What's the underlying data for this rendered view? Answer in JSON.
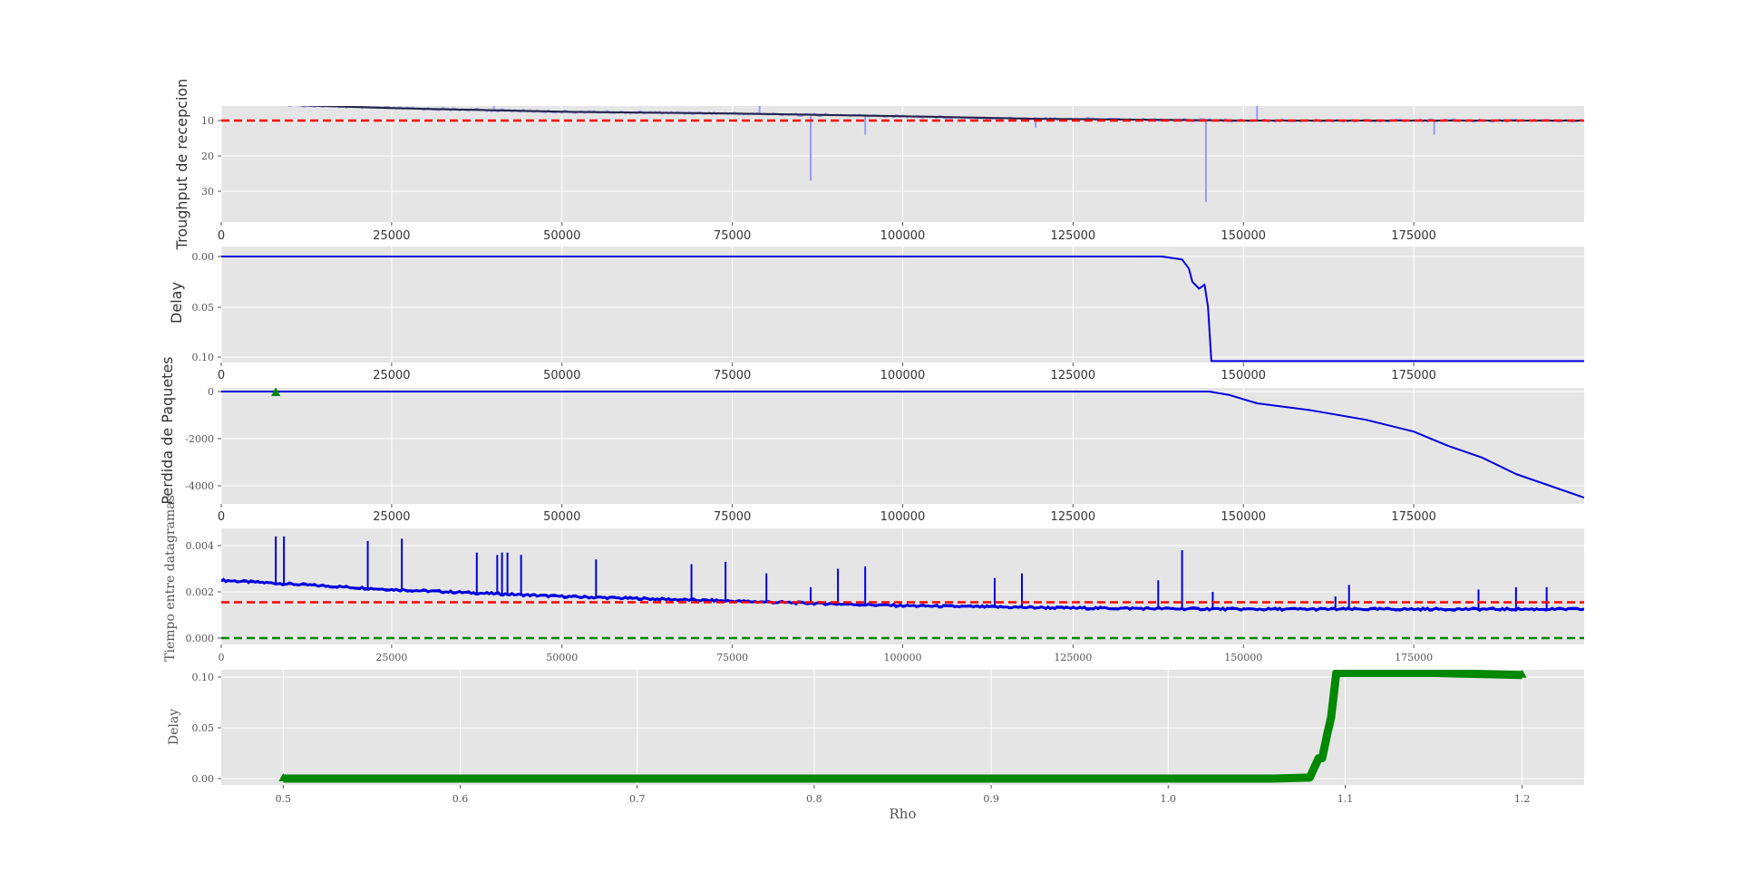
{
  "chart_data": [
    {
      "type": "line",
      "ylabel": "Troughput de recepcion",
      "xlim": [
        0,
        200000
      ],
      "ylim": [
        0,
        35
      ],
      "x_ticks": [
        "0",
        "25000",
        "50000",
        "75000",
        "100000",
        "125000",
        "150000",
        "175000"
      ],
      "y_ticks": [
        "10",
        "20",
        "30"
      ],
      "grid": true,
      "reference_line": {
        "y": 10,
        "style": "dashed",
        "color": "#ff0000"
      },
      "series": [
        {
          "role": "raw",
          "color": "#9999ee",
          "x": [
            0,
            25000,
            50000,
            75000,
            100000,
            120000,
            150000,
            175000,
            200000
          ],
          "y": [
            5.0,
            6.5,
            7.5,
            8.0,
            8.8,
            9.5,
            10.0,
            10.0,
            10.0
          ],
          "spikes": [
            [
              86500,
              27
            ],
            [
              94500,
              14
            ],
            [
              119500,
              12
            ],
            [
              144500,
              33
            ],
            [
              178000,
              14
            ],
            [
              8000,
              3
            ],
            [
              40000,
              3
            ],
            [
              79000,
              3
            ],
            [
              152000,
              5
            ]
          ]
        },
        {
          "role": "smoothed",
          "color": "#222244",
          "x": [
            0,
            25000,
            50000,
            75000,
            100000,
            120000,
            150000,
            175000,
            200000
          ],
          "y": [
            5.0,
            6.5,
            7.5,
            8.0,
            8.8,
            9.5,
            10.0,
            10.0,
            10.0
          ]
        }
      ]
    },
    {
      "type": "line",
      "ylabel": "Delay",
      "xlim": [
        0,
        200000
      ],
      "ylim": [
        -0.005,
        0.108
      ],
      "x_ticks": [
        "0",
        "25000",
        "50000",
        "75000",
        "100000",
        "125000",
        "150000",
        "175000"
      ],
      "y_ticks": [
        "0.00",
        "0.05",
        "0.10"
      ],
      "grid": true,
      "series": [
        {
          "color": "#0000dd",
          "x": [
            0,
            120000,
            138000,
            141000,
            142000,
            142500,
            143500,
            144300,
            144800,
            145300,
            200000
          ],
          "y": [
            0.0,
            0.0,
            0.0,
            0.003,
            0.012,
            0.025,
            0.032,
            0.028,
            0.05,
            0.104,
            0.104
          ]
        }
      ]
    },
    {
      "type": "line",
      "ylabel": "Perdida de Paquetes",
      "xlim": [
        0,
        200000
      ],
      "ylim": [
        -4700,
        150
      ],
      "x_ticks": [
        "0",
        "25000",
        "50000",
        "75000",
        "100000",
        "125000",
        "150000",
        "175000"
      ],
      "y_ticks": [
        "0",
        "-2000",
        "-4000"
      ],
      "grid": true,
      "marker": {
        "x": 8000,
        "y": 0,
        "shape": "triangle",
        "color": "#008800"
      },
      "series": [
        {
          "color": "#0000dd",
          "x": [
            0,
            145000,
            148000,
            152000,
            160000,
            168000,
            175000,
            180000,
            185000,
            190000,
            195000,
            200000
          ],
          "y": [
            0,
            0,
            -150,
            -500,
            -800,
            -1200,
            -1700,
            -2300,
            -2800,
            -3500,
            -4000,
            -4500
          ]
        }
      ]
    },
    {
      "type": "line",
      "ylabel": "Tiempo entre datagramas",
      "xlim": [
        0,
        200000
      ],
      "ylim": [
        -0.0002,
        0.0048
      ],
      "x_ticks": [
        "0",
        "25000",
        "50000",
        "75000",
        "100000",
        "125000",
        "150000",
        "175000"
      ],
      "y_ticks": [
        "0.000",
        "0.002",
        "0.004"
      ],
      "grid": true,
      "reference_lines": [
        {
          "y": 0.00155,
          "style": "dashed",
          "color": "#ff0000"
        },
        {
          "y": 0.0,
          "style": "dashed",
          "color": "#008800"
        }
      ],
      "series": [
        {
          "color": "#0000dd",
          "x": [
            0,
            25000,
            50000,
            75000,
            100000,
            125000,
            150000,
            175000,
            200000
          ],
          "y": [
            0.0025,
            0.0021,
            0.0018,
            0.0016,
            0.0014,
            0.0013,
            0.00125,
            0.00125,
            0.00125
          ],
          "spikes": [
            [
              8000,
              0.0044
            ],
            [
              9200,
              0.0044
            ],
            [
              21500,
              0.0042
            ],
            [
              26500,
              0.0043
            ],
            [
              37500,
              0.0037
            ],
            [
              40500,
              0.0036
            ],
            [
              41200,
              0.0037
            ],
            [
              42000,
              0.0037
            ],
            [
              44000,
              0.0036
            ],
            [
              55000,
              0.0034
            ],
            [
              69000,
              0.0032
            ],
            [
              74000,
              0.0033
            ],
            [
              80000,
              0.0028
            ],
            [
              86500,
              0.0022
            ],
            [
              90500,
              0.003
            ],
            [
              94500,
              0.0031
            ],
            [
              113500,
              0.0026
            ],
            [
              117500,
              0.0028
            ],
            [
              137500,
              0.0025
            ],
            [
              141000,
              0.0038
            ],
            [
              145500,
              0.002
            ],
            [
              163500,
              0.0018
            ],
            [
              165500,
              0.0023
            ],
            [
              184500,
              0.0021
            ],
            [
              190000,
              0.0022
            ],
            [
              194500,
              0.0022
            ]
          ]
        }
      ]
    },
    {
      "type": "line",
      "ylabel": "Delay",
      "xlabel": "Rho",
      "xlim": [
        0.465,
        1.235
      ],
      "ylim": [
        -0.003,
        0.108
      ],
      "x_ticks": [
        "0.5",
        "0.6",
        "0.7",
        "0.8",
        "0.9",
        "1.0",
        "1.1",
        "1.2"
      ],
      "y_ticks": [
        "0.00",
        "0.05",
        "0.10"
      ],
      "grid": true,
      "series": [
        {
          "color": "#008800",
          "thick": true,
          "x": [
            0.5,
            0.9,
            1.02,
            1.06,
            1.08,
            1.085,
            1.087,
            1.09,
            1.092,
            1.095,
            1.1,
            1.15,
            1.2
          ],
          "y": [
            0.0,
            0.0,
            0.0,
            0.0,
            0.001,
            0.02,
            0.02,
            0.045,
            0.06,
            0.104,
            0.104,
            0.104,
            0.102
          ]
        }
      ]
    }
  ]
}
